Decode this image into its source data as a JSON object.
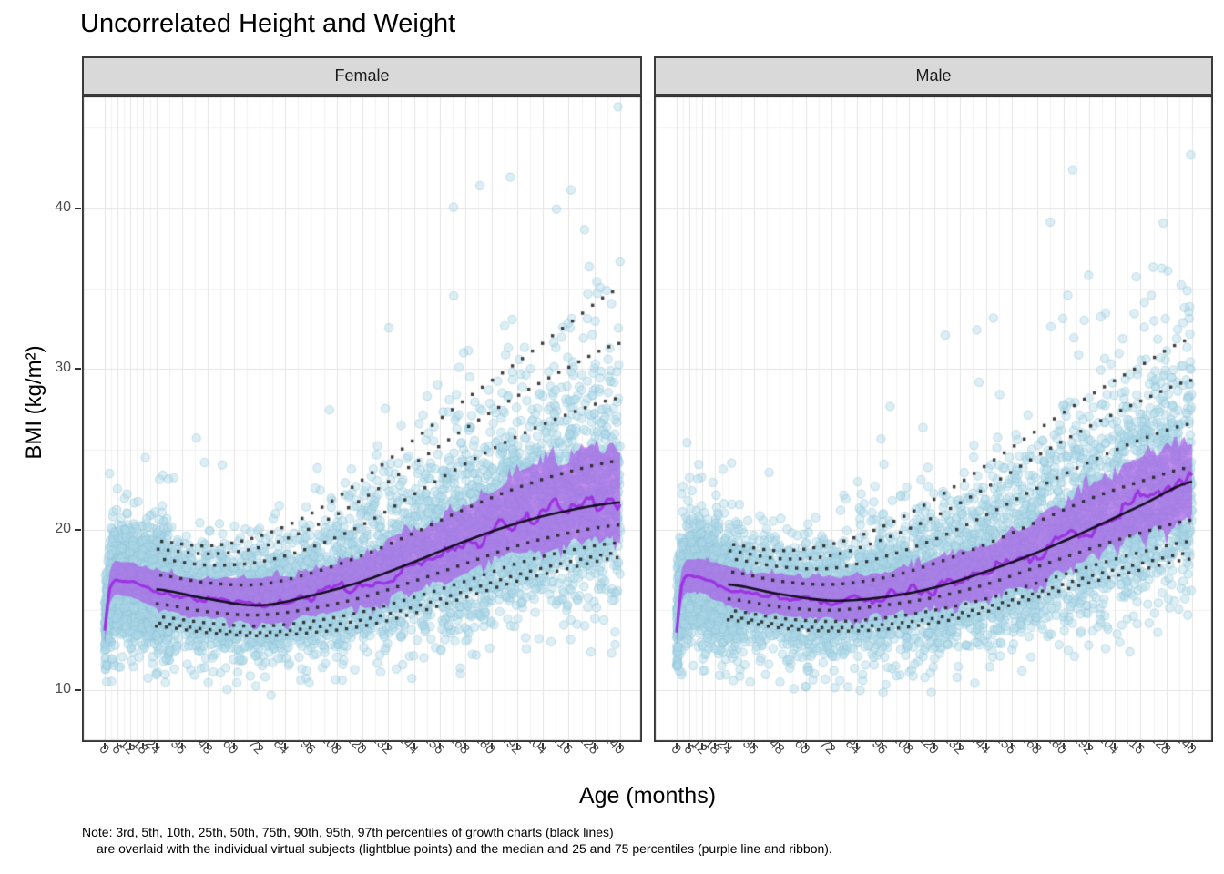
{
  "title": "Uncorrelated Height and Weight",
  "note": {
    "line1": "Note: 3rd, 5th, 10th, 25th, 50th, 75th, 90th, 95th, 97th percentiles of growth charts (black lines)",
    "line2": "are overlaid with the individual virtual subjects (lightblue points) and the median and 25 and 75 percentiles (purple line and ribbon)."
  },
  "chart_data": {
    "type": "scatter",
    "title": "Uncorrelated Height and Weight",
    "xlabel": "Age (months)",
    "ylabel": "BMI (kg/m²)",
    "facets": [
      "Female",
      "Male"
    ],
    "x_ticks": [
      0,
      6,
      12,
      18,
      24,
      36,
      48,
      60,
      72,
      84,
      96,
      108,
      120,
      132,
      144,
      156,
      168,
      180,
      192,
      204,
      216,
      228,
      240
    ],
    "y_ticks": [
      10,
      20,
      30,
      40
    ],
    "y_minor": [
      15,
      25,
      35,
      45
    ],
    "xlim": [
      -10.6,
      250.2
    ],
    "ylim": [
      6.8,
      47.0
    ],
    "grid": true,
    "legend": "none",
    "percentiles": {
      "ages": [
        24,
        48,
        72,
        96,
        120,
        144,
        168,
        192,
        216,
        240
      ],
      "labels": [
        "3rd",
        "5th",
        "10th",
        "25th",
        "50th",
        "75th",
        "90th",
        "95th",
        "97th"
      ],
      "Female": {
        "p3": [
          14.0,
          13.6,
          13.4,
          13.6,
          14.0,
          14.8,
          15.8,
          16.8,
          17.6,
          18.3
        ],
        "p5": [
          14.2,
          13.8,
          13.6,
          13.9,
          14.4,
          15.2,
          16.2,
          17.2,
          18.0,
          18.6
        ],
        "p10": [
          14.6,
          14.2,
          14.0,
          14.3,
          14.9,
          15.8,
          16.8,
          17.9,
          18.7,
          19.2
        ],
        "p25": [
          15.4,
          14.9,
          14.7,
          15.1,
          15.8,
          16.8,
          17.9,
          19.0,
          19.8,
          20.3
        ],
        "p50": [
          16.3,
          15.7,
          15.3,
          15.9,
          16.8,
          18.0,
          19.3,
          20.4,
          21.2,
          21.7
        ],
        "p75": [
          17.2,
          16.7,
          16.6,
          17.3,
          18.4,
          19.8,
          21.3,
          22.6,
          23.6,
          24.3
        ],
        "p90": [
          18.2,
          17.8,
          18.0,
          18.9,
          20.3,
          22.2,
          24.1,
          25.8,
          27.2,
          28.2
        ],
        "p95": [
          18.8,
          18.5,
          18.9,
          20.1,
          21.9,
          24.1,
          26.3,
          28.3,
          30.1,
          31.6
        ],
        "p97": [
          19.3,
          19.0,
          19.6,
          21.0,
          23.1,
          25.6,
          28.1,
          30.4,
          32.8,
          35.0
        ]
      },
      "Male": {
        "p3": [
          14.4,
          13.9,
          13.7,
          13.8,
          14.2,
          14.9,
          15.8,
          16.7,
          17.5,
          18.2
        ],
        "p5": [
          14.6,
          14.1,
          13.9,
          14.1,
          14.5,
          15.2,
          16.1,
          17.1,
          17.9,
          18.6
        ],
        "p10": [
          15.0,
          14.5,
          14.3,
          14.5,
          15.0,
          15.7,
          16.7,
          17.7,
          18.6,
          19.3
        ],
        "p25": [
          15.7,
          15.2,
          15.0,
          15.3,
          15.8,
          16.6,
          17.7,
          18.8,
          19.8,
          20.6
        ],
        "p50": [
          16.6,
          16.0,
          15.6,
          15.8,
          16.4,
          17.4,
          18.6,
          20.0,
          21.5,
          23.0
        ],
        "p75": [
          17.4,
          16.8,
          16.6,
          17.0,
          17.9,
          19.1,
          20.5,
          21.9,
          23.0,
          23.9
        ],
        "p90": [
          18.2,
          17.7,
          17.6,
          18.3,
          19.4,
          20.9,
          22.6,
          24.2,
          25.6,
          26.6
        ],
        "p95": [
          18.7,
          18.2,
          18.4,
          19.4,
          20.8,
          22.6,
          24.6,
          26.4,
          28.0,
          29.3
        ],
        "p97": [
          19.1,
          18.7,
          19.1,
          20.2,
          21.9,
          24.0,
          26.2,
          28.3,
          30.2,
          31.9
        ]
      }
    },
    "virtual_subjects": {
      "ages": [
        0,
        2,
        4,
        6,
        9,
        12,
        15,
        18,
        21,
        24,
        36,
        48,
        60,
        72,
        84,
        96,
        108,
        120,
        132,
        144,
        156,
        168,
        180,
        192,
        204,
        216,
        228,
        240
      ],
      "Female": {
        "median": [
          13.6,
          16.2,
          16.9,
          17.0,
          16.9,
          16.8,
          16.7,
          16.5,
          16.3,
          16.2,
          15.8,
          15.6,
          15.5,
          15.4,
          15.5,
          15.8,
          16.2,
          16.6,
          17.2,
          17.8,
          18.5,
          19.1,
          19.8,
          20.4,
          21.0,
          21.4,
          21.7,
          21.9
        ],
        "q25": [
          12.8,
          15.3,
          16.0,
          16.1,
          16.0,
          15.9,
          15.7,
          15.5,
          15.3,
          15.2,
          14.8,
          14.6,
          14.4,
          14.3,
          14.4,
          14.7,
          15.1,
          15.4,
          15.9,
          16.3,
          16.9,
          17.4,
          18.1,
          18.6,
          19.1,
          19.4,
          19.7,
          19.8
        ],
        "q75": [
          14.5,
          17.2,
          17.9,
          18.0,
          18.0,
          17.9,
          17.8,
          17.7,
          17.5,
          17.4,
          17.0,
          16.9,
          16.8,
          16.8,
          16.9,
          17.3,
          17.8,
          18.3,
          19.1,
          19.8,
          20.7,
          21.5,
          22.4,
          23.1,
          23.8,
          24.3,
          24.7,
          24.9
        ]
      },
      "Male": {
        "median": [
          13.7,
          16.4,
          17.1,
          17.2,
          17.1,
          17.0,
          16.9,
          16.7,
          16.5,
          16.4,
          16.0,
          15.8,
          15.7,
          15.6,
          15.7,
          15.9,
          16.1,
          16.4,
          16.8,
          17.3,
          17.9,
          18.6,
          19.4,
          20.2,
          21.0,
          21.8,
          22.5,
          23.0
        ],
        "q25": [
          12.9,
          15.5,
          16.2,
          16.3,
          16.2,
          16.1,
          15.9,
          15.7,
          15.5,
          15.4,
          15.0,
          14.8,
          14.7,
          14.5,
          14.6,
          14.8,
          15.0,
          15.2,
          15.5,
          15.8,
          16.3,
          16.9,
          17.7,
          18.4,
          19.1,
          19.8,
          20.5,
          20.9
        ],
        "q75": [
          14.6,
          17.4,
          18.1,
          18.2,
          18.2,
          18.1,
          18.0,
          17.9,
          17.7,
          17.6,
          17.2,
          17.1,
          17.0,
          17.0,
          17.1,
          17.3,
          17.6,
          18.0,
          18.4,
          19.0,
          19.7,
          20.6,
          21.5,
          22.4,
          23.3,
          24.1,
          24.8,
          25.2
        ]
      },
      "points_per_facet": 7200,
      "bmi_range_observed": [
        9,
        46
      ]
    },
    "style": {
      "scatter_fill": "#ADD8E6",
      "scatter_alpha": 0.42,
      "scatter_stroke": "#8FC3D9",
      "ribbon": "#A855E6",
      "ribbon_alpha": 0.66,
      "median_line": "#9B30E0",
      "growth_line": "#0B0614",
      "dotted": "#1E1E1E",
      "strip_bg": "#D9D9D9",
      "strip_border": "#3a3a3a",
      "panel_border": "#333333",
      "grid_major": "#E4E4E4",
      "grid_minor": "#F2F2F2",
      "tick_text": "#4D4D4D",
      "tick_mark": "#333333"
    }
  }
}
